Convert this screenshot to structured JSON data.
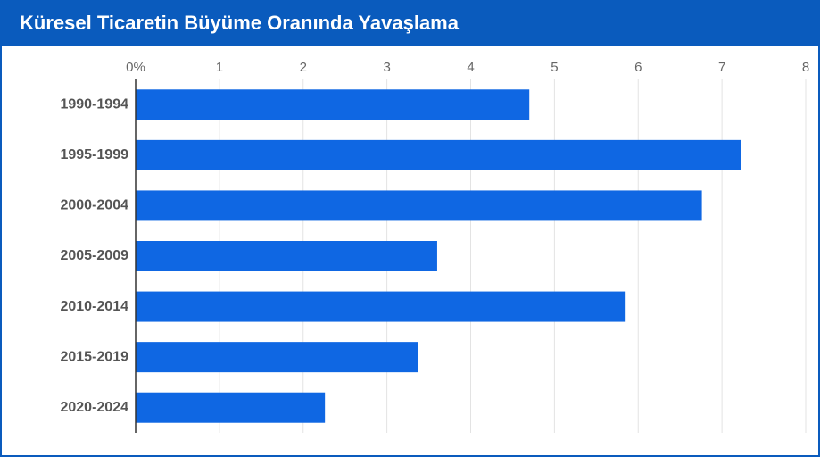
{
  "chart_data": {
    "type": "bar",
    "orientation": "horizontal",
    "title": "Küresel Ticaretin Büyüme Oranında Yavaşlama",
    "categories": [
      "1990-1994",
      "1995-1999",
      "2000-2004",
      "2005-2009",
      "2010-2014",
      "2015-2019",
      "2020-2024"
    ],
    "values": [
      4.7,
      7.23,
      6.76,
      3.6,
      5.85,
      3.37,
      2.26
    ],
    "color": "#0f67e3",
    "xlim": [
      0,
      8
    ],
    "xticks": [
      {
        "value": 0,
        "label": "0%"
      },
      1,
      2,
      3,
      4,
      5,
      6,
      7,
      8
    ],
    "grid": true
  }
}
